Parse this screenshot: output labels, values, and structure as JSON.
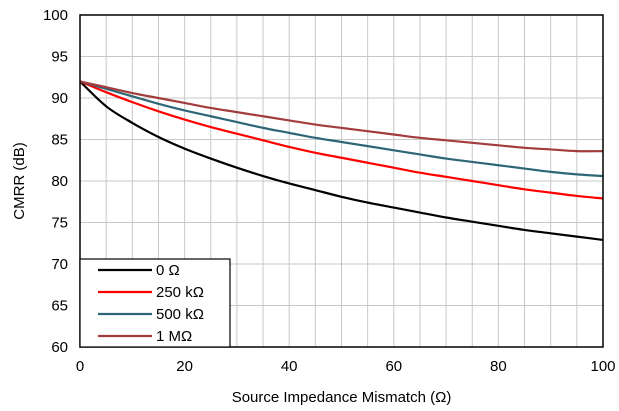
{
  "chart_data": {
    "type": "line",
    "title": "",
    "xlabel": "Source Impedance Mismatch (Ω)",
    "ylabel": "CMRR (dB)",
    "xlim": [
      0,
      100
    ],
    "ylim": [
      60,
      100
    ],
    "x_ticks": [
      0,
      20,
      40,
      60,
      80,
      100
    ],
    "y_ticks": [
      60,
      65,
      70,
      75,
      80,
      85,
      90,
      95,
      100
    ],
    "x_tick_labels": [
      "0",
      "20",
      "40",
      "60",
      "80",
      "100"
    ],
    "y_tick_labels": [
      "60",
      "65",
      "70",
      "75",
      "80",
      "85",
      "90",
      "95",
      "100"
    ],
    "x_minor_step": 5,
    "grid": true,
    "legend_position": "bottom-left",
    "x": [
      0,
      5,
      10,
      15,
      20,
      25,
      30,
      35,
      40,
      45,
      50,
      55,
      60,
      65,
      70,
      75,
      80,
      85,
      90,
      95,
      100
    ],
    "series": [
      {
        "name": "0 Ω",
        "color": "#000000",
        "values": [
          92,
          89.0,
          87.0,
          85.3,
          83.9,
          82.7,
          81.6,
          80.6,
          79.7,
          78.9,
          78.1,
          77.4,
          76.8,
          76.2,
          75.6,
          75.1,
          74.6,
          74.1,
          73.7,
          73.3,
          72.9
        ]
      },
      {
        "name": "250 kΩ",
        "color": "#ff0000",
        "values": [
          92,
          90.7,
          89.5,
          88.4,
          87.4,
          86.5,
          85.7,
          84.9,
          84.1,
          83.4,
          82.8,
          82.2,
          81.6,
          81.0,
          80.5,
          80.0,
          79.5,
          79.0,
          78.6,
          78.2,
          77.9
        ]
      },
      {
        "name": "500 kΩ",
        "color": "#2e6677",
        "values": [
          92,
          91.1,
          90.2,
          89.3,
          88.5,
          87.8,
          87.1,
          86.4,
          85.8,
          85.2,
          84.7,
          84.2,
          83.7,
          83.2,
          82.7,
          82.3,
          81.9,
          81.5,
          81.1,
          80.8,
          80.6
        ]
      },
      {
        "name": "1 MΩ",
        "color": "#a33c3c",
        "values": [
          92,
          91.3,
          90.6,
          90.0,
          89.4,
          88.8,
          88.3,
          87.8,
          87.3,
          86.8,
          86.4,
          86.0,
          85.6,
          85.2,
          84.9,
          84.6,
          84.3,
          84.0,
          83.8,
          83.6,
          83.6
        ]
      }
    ]
  }
}
